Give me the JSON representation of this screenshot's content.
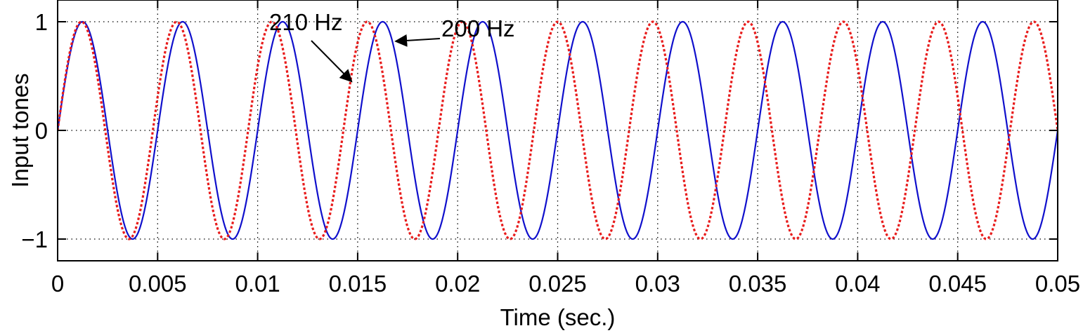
{
  "chart_data": {
    "type": "line",
    "xlabel": "Time (sec.)",
    "ylabel": "Input tones",
    "xlim": [
      0,
      0.05
    ],
    "ylim": [
      -1.2,
      1.2
    ],
    "x_ticks": [
      0,
      0.005,
      0.01,
      0.015,
      0.02,
      0.025,
      0.03,
      0.035,
      0.04,
      0.045,
      0.05
    ],
    "x_tick_labels": [
      "0",
      "0.005",
      "0.01",
      "0.015",
      "0.02",
      "0.025",
      "0.03",
      "0.035",
      "0.04",
      "0.045",
      "0.05"
    ],
    "y_ticks": [
      -1,
      0,
      1
    ],
    "y_tick_labels": [
      "−1",
      "0",
      "1"
    ],
    "grid": true,
    "grid_style": "dotted",
    "series": [
      {
        "name": "200 Hz",
        "frequency_hz": 200,
        "amplitude": 1,
        "phase": 0,
        "color": "#1010cc",
        "line_style": "solid"
      },
      {
        "name": "210 Hz",
        "frequency_hz": 210,
        "amplitude": 1,
        "phase": 0,
        "color": "#e81c1c",
        "line_style": "dotted"
      }
    ],
    "annotations": [
      {
        "text": "210 Hz",
        "series": "210 Hz",
        "x": 0.0147,
        "y": 0.45
      },
      {
        "text": "200 Hz",
        "series": "200 Hz",
        "x": 0.0169,
        "y": 0.82
      }
    ]
  }
}
